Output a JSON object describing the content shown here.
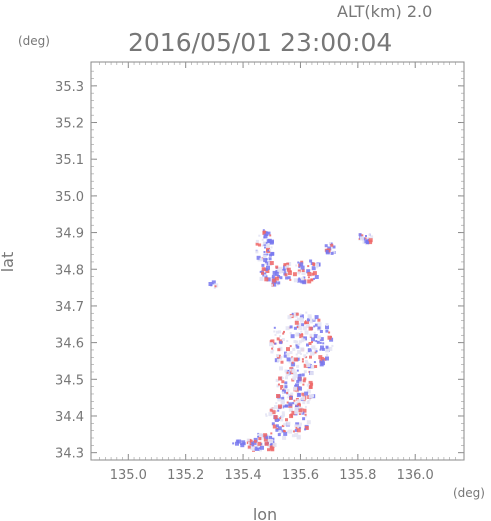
{
  "header": {
    "altitude_label": "ALT(km) 2.0",
    "timestamp": "2016/05/01 23:00:04"
  },
  "chart_data": {
    "type": "scatter",
    "xlabel": "lon",
    "ylabel": "lat",
    "x_unit": "(deg)",
    "y_unit": "(deg)",
    "xlim": [
      134.87,
      136.17
    ],
    "ylim": [
      34.28,
      35.365
    ],
    "x_ticks": [
      "135.0",
      "135.2",
      "135.4",
      "135.6",
      "135.8",
      "136.0"
    ],
    "x_tick_values": [
      135.0,
      135.2,
      135.4,
      135.6,
      135.8,
      136.0
    ],
    "y_ticks": [
      "34.3",
      "34.4",
      "34.5",
      "34.6",
      "34.7",
      "34.8",
      "34.9",
      "35.0",
      "35.1",
      "35.2",
      "35.3"
    ],
    "y_tick_values": [
      34.3,
      34.4,
      34.5,
      34.6,
      34.7,
      34.8,
      34.9,
      35.0,
      35.1,
      35.2,
      35.3
    ],
    "colors": {
      "positive": "#ee6666",
      "negative": "#7777ee",
      "neutral": "#e4e4f4",
      "axis": "#888888"
    },
    "clusters": [
      {
        "lon": 135.6,
        "lat": 34.6,
        "rlon": 0.11,
        "rlat": 0.09,
        "n": 220,
        "w": [
          0.25,
          0.3,
          0.45
        ]
      },
      {
        "lon": 135.57,
        "lat": 34.47,
        "rlon": 0.07,
        "rlat": 0.06,
        "n": 110,
        "w": [
          0.25,
          0.35,
          0.4
        ]
      },
      {
        "lon": 135.55,
        "lat": 34.39,
        "rlon": 0.08,
        "rlat": 0.05,
        "n": 90,
        "w": [
          0.3,
          0.35,
          0.35
        ]
      },
      {
        "lon": 135.46,
        "lat": 34.33,
        "rlon": 0.05,
        "rlat": 0.025,
        "n": 70,
        "w": [
          0.25,
          0.45,
          0.3
        ]
      },
      {
        "lon": 135.6,
        "lat": 34.8,
        "rlon": 0.08,
        "rlat": 0.03,
        "n": 70,
        "w": [
          0.3,
          0.45,
          0.25
        ]
      },
      {
        "lon": 135.47,
        "lat": 34.86,
        "rlon": 0.03,
        "rlat": 0.05,
        "n": 50,
        "w": [
          0.25,
          0.5,
          0.25
        ]
      },
      {
        "lon": 135.82,
        "lat": 34.89,
        "rlon": 0.025,
        "rlat": 0.015,
        "n": 25,
        "w": [
          0.5,
          0.3,
          0.2
        ]
      },
      {
        "lon": 135.49,
        "lat": 34.79,
        "rlon": 0.04,
        "rlat": 0.035,
        "n": 40,
        "w": [
          0.25,
          0.5,
          0.25
        ]
      },
      {
        "lon": 135.29,
        "lat": 34.76,
        "rlon": 0.012,
        "rlat": 0.012,
        "n": 6,
        "w": [
          0.3,
          0.5,
          0.2
        ]
      },
      {
        "lon": 135.38,
        "lat": 34.33,
        "rlon": 0.02,
        "rlat": 0.006,
        "n": 10,
        "w": [
          0.1,
          0.8,
          0.1
        ]
      },
      {
        "lon": 135.7,
        "lat": 34.86,
        "rlon": 0.02,
        "rlat": 0.015,
        "n": 15,
        "w": [
          0.3,
          0.4,
          0.3
        ]
      }
    ]
  }
}
